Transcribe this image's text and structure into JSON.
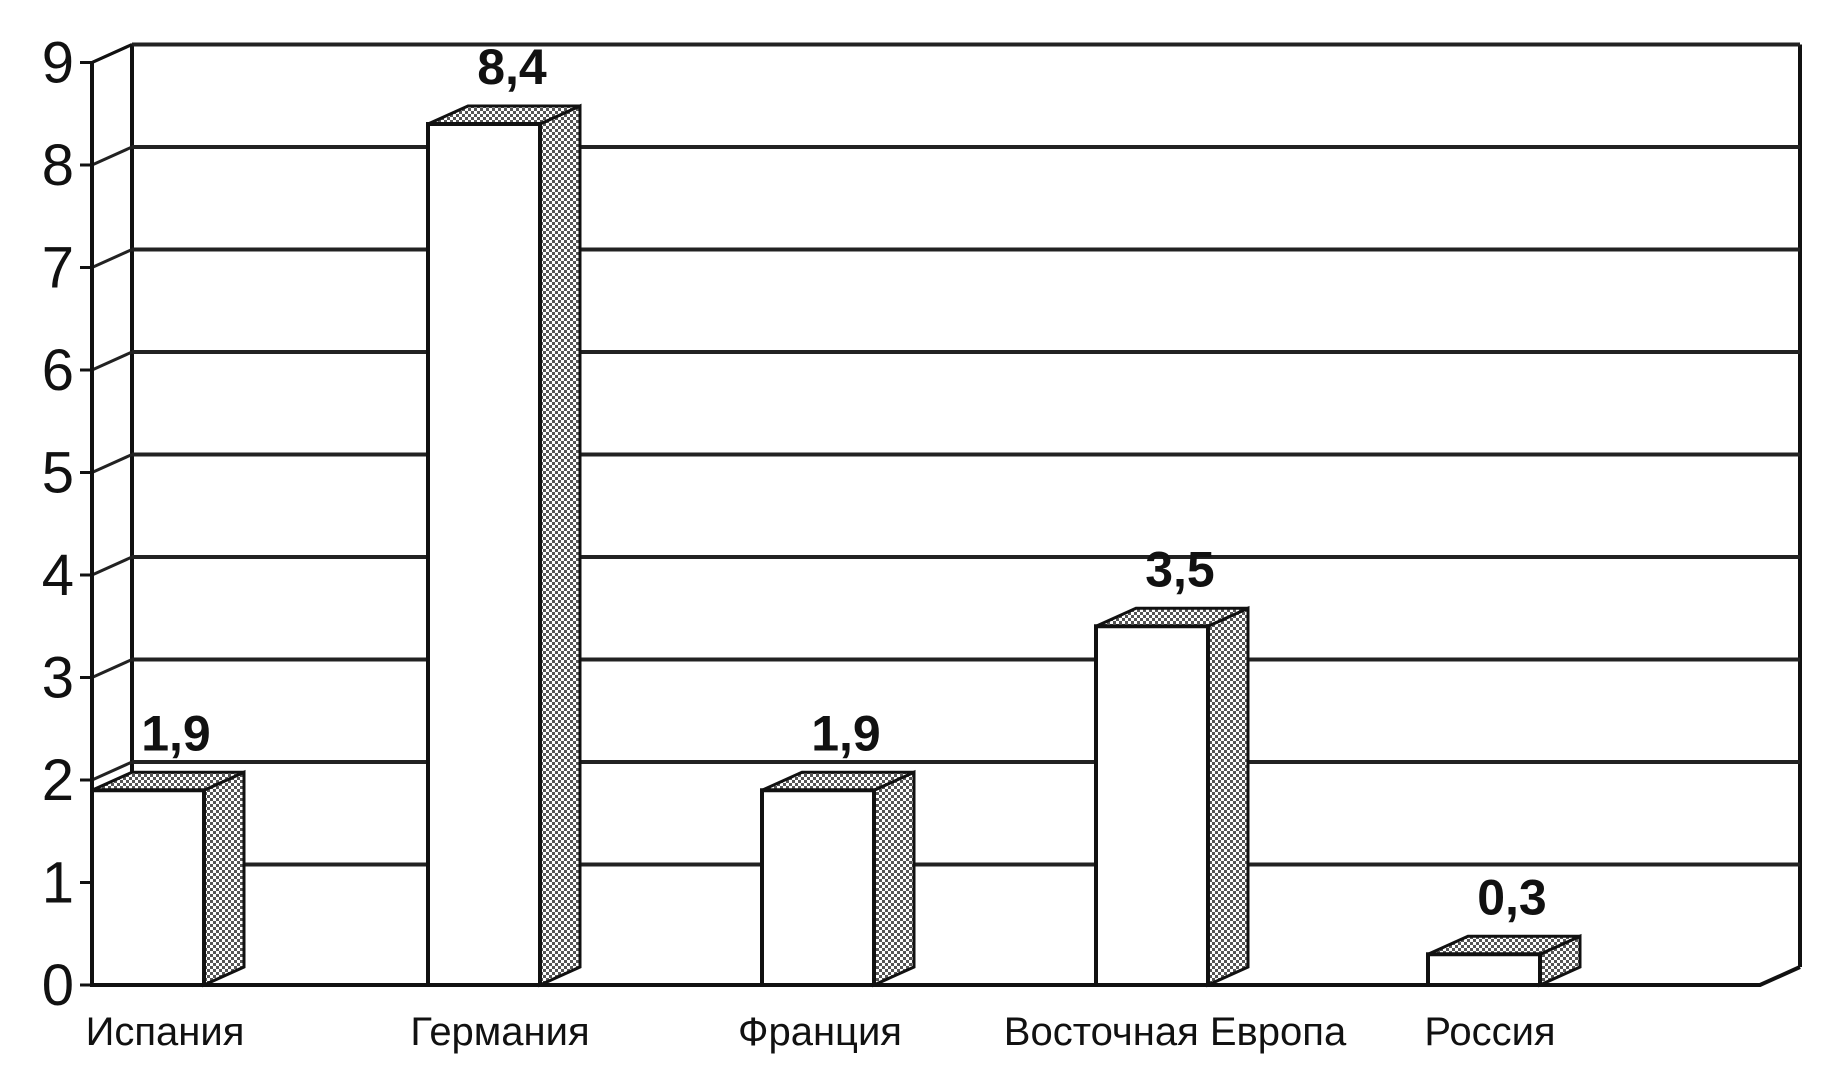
{
  "chart_data": {
    "type": "bar",
    "style": "3d",
    "categories": [
      "Испания",
      "Германия",
      "Франция",
      "Восточная Европа",
      "Россия"
    ],
    "values": [
      1.9,
      8.4,
      1.9,
      3.5,
      0.3
    ],
    "value_labels": [
      "1,9",
      "8,4",
      "1,9",
      "3,5",
      "0,3"
    ],
    "y_ticks": [
      "0",
      "1",
      "2",
      "3",
      "4",
      "5",
      "6",
      "7",
      "8",
      "9"
    ],
    "ylim": [
      0,
      9
    ],
    "grid": true,
    "legend": "none",
    "colors": {
      "bar_front": "#ffffff",
      "stroke": "#111111",
      "grid": "#222222",
      "pattern_dot": "#555555"
    }
  }
}
